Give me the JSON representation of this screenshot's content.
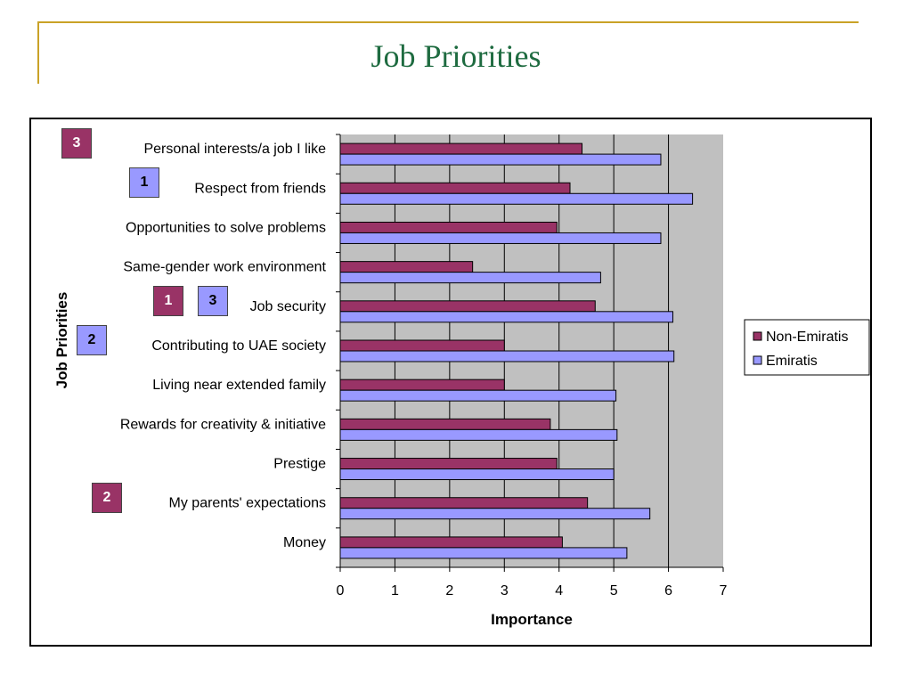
{
  "slide": {
    "title": "Job Priorities"
  },
  "colors": {
    "non_emiratis": "#993366",
    "emiratis": "#9999ff",
    "plot_bg": "#c0c0c0",
    "title": "#1e6b40",
    "rule": "#c9a227"
  },
  "chart_data": {
    "type": "bar",
    "orientation": "horizontal",
    "title": "",
    "xlabel": "Importance",
    "ylabel": "Job Priorities",
    "xlim": [
      0,
      7
    ],
    "xticks": [
      "0",
      "1",
      "2",
      "3",
      "4",
      "5",
      "6",
      "7"
    ],
    "grid": true,
    "legend_position": "right",
    "categories": [
      "Personal interests/a job I like",
      "Respect from friends",
      "Opportunities to solve problems",
      "Same-gender work environment",
      "Job security",
      "Contributing to UAE society",
      "Living near extended family",
      "Rewards for creativity & initiative",
      "Prestige",
      "My parents' expectations",
      "Money"
    ],
    "series": [
      {
        "name": "Non-Emiratis",
        "color": "#993366",
        "values": [
          4.42,
          4.2,
          3.96,
          2.42,
          4.66,
          3.0,
          3.0,
          3.84,
          3.96,
          4.52,
          4.06
        ]
      },
      {
        "name": "Emiratis",
        "color": "#9999ff",
        "values": [
          5.86,
          6.44,
          5.86,
          4.76,
          6.08,
          6.1,
          5.04,
          5.06,
          5.0,
          5.66,
          5.24
        ]
      }
    ]
  },
  "rank_badges": [
    {
      "category": "Personal interests/a job I like",
      "series": "Non-Emiratis",
      "rank": "3"
    },
    {
      "category": "Respect from friends",
      "series": "Emiratis",
      "rank": "1"
    },
    {
      "category": "Job security",
      "series": "Non-Emiratis",
      "rank": "1"
    },
    {
      "category": "Job security",
      "series": "Emiratis",
      "rank": "3"
    },
    {
      "category": "Contributing to UAE society",
      "series": "Emiratis",
      "rank": "2"
    },
    {
      "category": "My parents' expectations",
      "series": "Non-Emiratis",
      "rank": "2"
    }
  ]
}
